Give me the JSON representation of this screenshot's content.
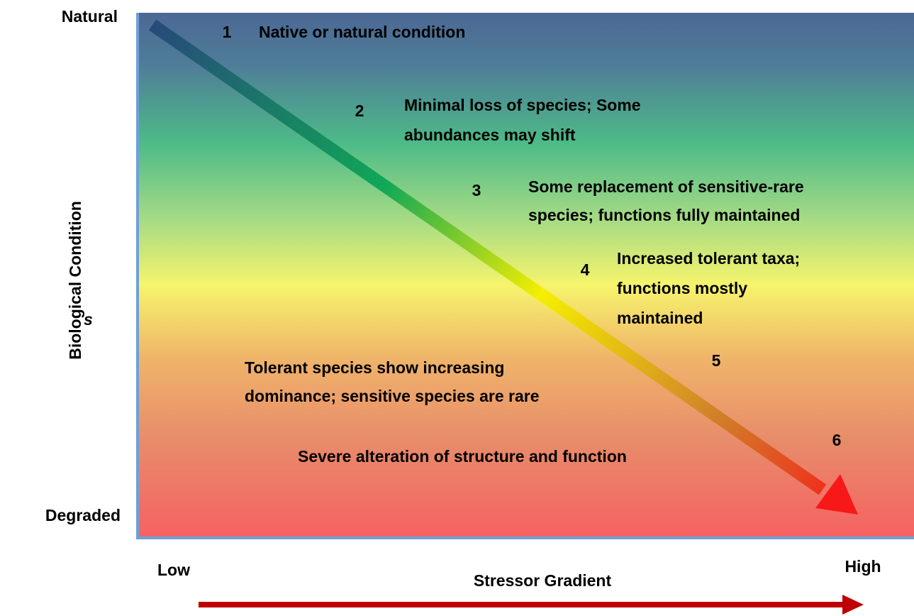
{
  "axes": {
    "y_top": "Natural",
    "y_bottom": "Degraded",
    "y_title": "Biological Condition",
    "stray": "s",
    "x_left": "Low",
    "x_right": "High",
    "x_title": "Stressor Gradient"
  },
  "levels": [
    {
      "number": "1",
      "lines": [
        "Native or natural condition"
      ]
    },
    {
      "number": "2",
      "lines": [
        "Minimal loss of species; Some",
        "abundances may shift"
      ]
    },
    {
      "number": "3",
      "lines": [
        "Some replacement of sensitive-rare",
        "species; functions fully maintained"
      ]
    },
    {
      "number": "4",
      "lines": [
        "Increased tolerant taxa;",
        "functions mostly",
        "maintained"
      ]
    },
    {
      "number": "5",
      "lines": [
        "Tolerant species show increasing",
        "dominance; sensitive species are rare"
      ]
    },
    {
      "number": "6",
      "lines": [
        "Severe alteration of structure and function"
      ]
    }
  ]
}
